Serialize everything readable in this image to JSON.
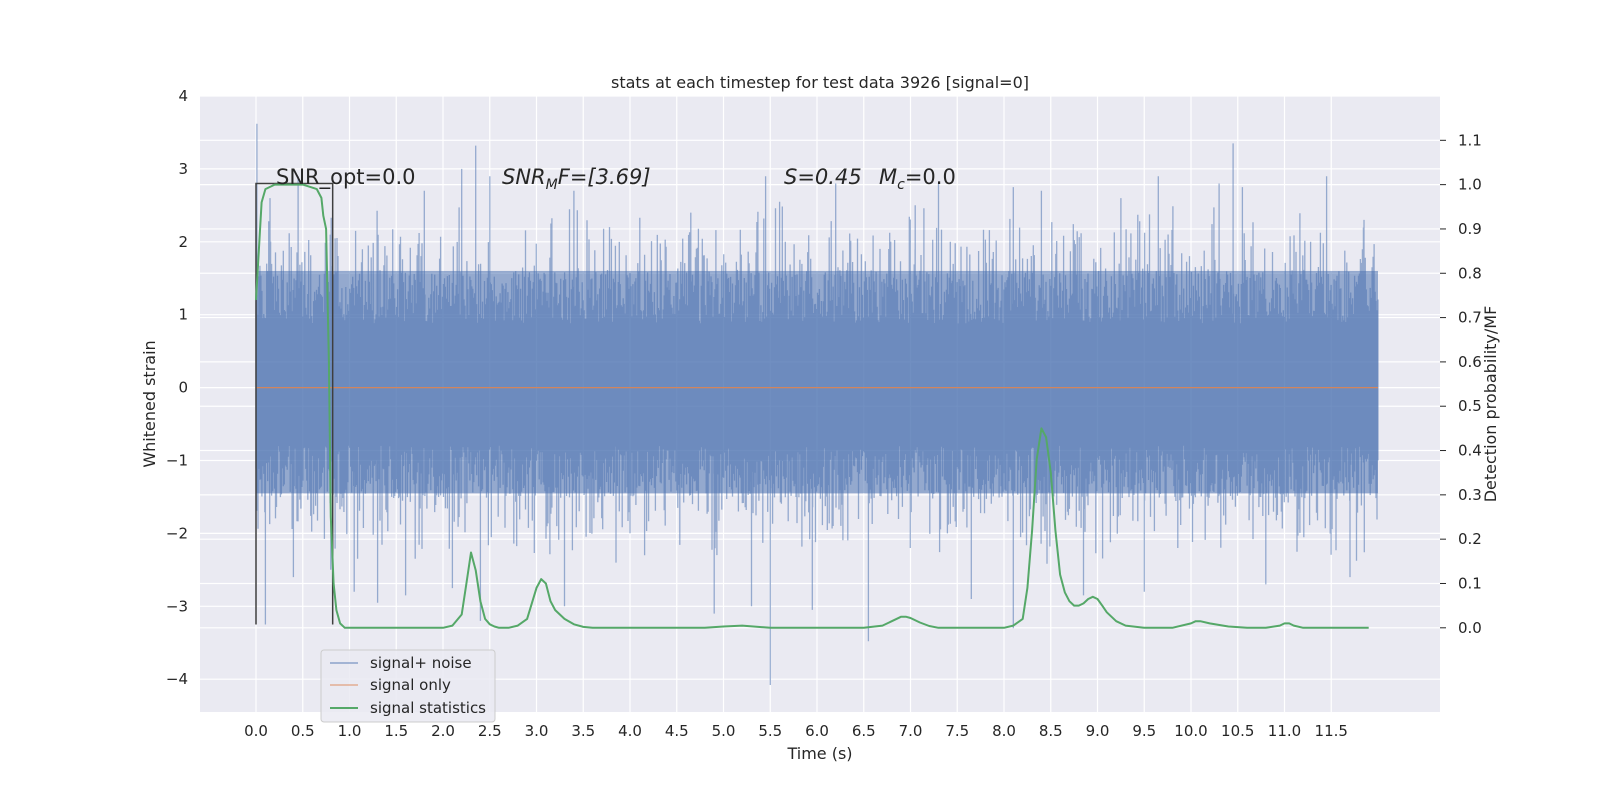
{
  "chart_data": {
    "type": "line",
    "title": "stats at each timestep for test data 3926 [signal=0]",
    "xlabel": "Time (s)",
    "ylabel": "Whitened strain",
    "y2label": "Detection probability/MF",
    "xlim": [
      -0.6,
      12.6
    ],
    "ylim": [
      -4.45,
      4.0
    ],
    "y2lim": [
      -0.19,
      1.2
    ],
    "x_ticks": [
      "0.0",
      "0.5",
      "1.0",
      "1.5",
      "2.0",
      "2.5",
      "3.0",
      "3.5",
      "4.0",
      "4.5",
      "5.0",
      "5.5",
      "6.0",
      "6.5",
      "7.0",
      "7.5",
      "8.0",
      "8.5",
      "9.0",
      "9.5",
      "10.0",
      "10.5",
      "11.0",
      "11.5"
    ],
    "y_ticks": [
      "4",
      "3",
      "2",
      "1",
      "0",
      "−1",
      "−2",
      "−3",
      "−4"
    ],
    "y2_ticks": [
      "1.1",
      "1.0",
      "0.9",
      "0.8",
      "0.7",
      "0.6",
      "0.5",
      "0.4",
      "0.3",
      "0.2",
      "0.1",
      "0.0"
    ],
    "grid": true,
    "legend_position": "lower-left",
    "annotations": {
      "snr_opt": "SNR_opt=0.0",
      "snr_mf": "SNR",
      "snr_mf_sub": "M",
      "snr_mf_tail": "F=[3.69]",
      "s_stat": "S=0.45",
      "mc": "M",
      "mc_sub": "c",
      "mc_tail": "=0.0"
    },
    "series": [
      {
        "name": "signal+ noise",
        "color": "#4c72b0",
        "x_range": [
          0.0,
          12.0
        ],
        "envelope_typical": [
          -1.45,
          1.6
        ],
        "spikes": [
          {
            "x": 0.01,
            "y": 3.62
          },
          {
            "x": 0.1,
            "y": -3.25
          },
          {
            "x": 0.15,
            "y": 2.6
          },
          {
            "x": 0.4,
            "y": -2.6
          },
          {
            "x": 0.45,
            "y": 2.9
          },
          {
            "x": 0.8,
            "y": -2.5
          },
          {
            "x": 1.05,
            "y": -2.8
          },
          {
            "x": 1.3,
            "y": -2.95
          },
          {
            "x": 1.6,
            "y": -2.85
          },
          {
            "x": 1.8,
            "y": 2.7
          },
          {
            "x": 2.1,
            "y": -2.75
          },
          {
            "x": 2.2,
            "y": 3.0
          },
          {
            "x": 2.35,
            "y": 3.32
          },
          {
            "x": 2.4,
            "y": -3.2
          },
          {
            "x": 2.5,
            "y": 2.9
          },
          {
            "x": 3.3,
            "y": -3.0
          },
          {
            "x": 3.4,
            "y": 2.7
          },
          {
            "x": 3.85,
            "y": -2.4
          },
          {
            "x": 4.65,
            "y": 2.4
          },
          {
            "x": 4.9,
            "y": -3.1
          },
          {
            "x": 5.3,
            "y": -3.0
          },
          {
            "x": 5.45,
            "y": 2.9
          },
          {
            "x": 5.5,
            "y": -4.08
          },
          {
            "x": 5.6,
            "y": 2.55
          },
          {
            "x": 5.95,
            "y": -3.05
          },
          {
            "x": 6.2,
            "y": 2.8
          },
          {
            "x": 6.55,
            "y": -3.48
          },
          {
            "x": 6.7,
            "y": -0.75
          },
          {
            "x": 7.05,
            "y": 2.5
          },
          {
            "x": 7.3,
            "y": 2.8
          },
          {
            "x": 7.65,
            "y": -2.9
          },
          {
            "x": 8.1,
            "y": 2.75
          },
          {
            "x": 8.1,
            "y": -3.3
          },
          {
            "x": 8.4,
            "y": 2.7
          },
          {
            "x": 8.85,
            "y": -2.85
          },
          {
            "x": 9.25,
            "y": 2.6
          },
          {
            "x": 9.5,
            "y": -2.8
          },
          {
            "x": 9.65,
            "y": 2.9
          },
          {
            "x": 10.3,
            "y": 2.8
          },
          {
            "x": 10.45,
            "y": 3.35
          },
          {
            "x": 10.55,
            "y": 2.75
          },
          {
            "x": 10.8,
            "y": -2.7
          },
          {
            "x": 11.45,
            "y": 2.9
          },
          {
            "x": 11.7,
            "y": -2.6
          },
          {
            "x": 11.85,
            "y": 2.3
          }
        ]
      },
      {
        "name": "signal only",
        "color": "#dd8452",
        "x": [
          0.0,
          12.0
        ],
        "y": [
          0.0,
          0.0
        ]
      },
      {
        "name": "signal statistics",
        "color": "#55a868",
        "axis": "right",
        "x": [
          0.0,
          0.03,
          0.06,
          0.1,
          0.2,
          0.35,
          0.5,
          0.65,
          0.7,
          0.72,
          0.75,
          0.78,
          0.8,
          0.83,
          0.86,
          0.9,
          0.95,
          1.0,
          1.2,
          1.5,
          1.8,
          2.0,
          2.1,
          2.2,
          2.25,
          2.3,
          2.35,
          2.4,
          2.45,
          2.5,
          2.55,
          2.6,
          2.7,
          2.8,
          2.9,
          3.0,
          3.05,
          3.1,
          3.15,
          3.2,
          3.3,
          3.4,
          3.5,
          3.6,
          4.0,
          4.5,
          4.8,
          5.0,
          5.2,
          5.5,
          6.0,
          6.5,
          6.7,
          6.8,
          6.9,
          6.95,
          7.0,
          7.1,
          7.2,
          7.3,
          7.5,
          8.0,
          8.1,
          8.2,
          8.25,
          8.3,
          8.35,
          8.4,
          8.45,
          8.5,
          8.55,
          8.6,
          8.65,
          8.7,
          8.75,
          8.8,
          8.85,
          8.9,
          8.95,
          9.0,
          9.05,
          9.1,
          9.2,
          9.3,
          9.5,
          9.8,
          10.0,
          10.05,
          10.1,
          10.2,
          10.4,
          10.6,
          10.8,
          10.95,
          11.0,
          11.05,
          11.1,
          11.2,
          11.5,
          11.9
        ],
        "y": [
          0.74,
          0.85,
          0.96,
          0.99,
          1.0,
          1.0,
          1.0,
          0.99,
          0.97,
          0.93,
          0.9,
          0.6,
          0.25,
          0.1,
          0.04,
          0.01,
          0.0,
          0.0,
          0.0,
          0.0,
          0.0,
          0.0,
          0.005,
          0.03,
          0.1,
          0.17,
          0.13,
          0.06,
          0.02,
          0.008,
          0.003,
          0.0,
          0.0,
          0.005,
          0.02,
          0.09,
          0.11,
          0.1,
          0.06,
          0.04,
          0.02,
          0.008,
          0.002,
          0.0,
          0.0,
          0.0,
          0.0,
          0.003,
          0.005,
          0.0,
          0.0,
          0.0,
          0.005,
          0.015,
          0.025,
          0.025,
          0.022,
          0.012,
          0.004,
          0.0,
          0.0,
          0.0,
          0.005,
          0.02,
          0.09,
          0.22,
          0.38,
          0.45,
          0.43,
          0.35,
          0.22,
          0.12,
          0.08,
          0.06,
          0.05,
          0.05,
          0.055,
          0.065,
          0.07,
          0.065,
          0.05,
          0.035,
          0.015,
          0.005,
          0.0,
          0.0,
          0.01,
          0.015,
          0.015,
          0.01,
          0.003,
          0.0,
          0.0,
          0.005,
          0.01,
          0.01,
          0.005,
          0.0,
          0.0,
          0.0
        ]
      },
      {
        "name": "",
        "color": "#3f3f3f",
        "x": [
          0.0,
          0.0,
          0.82,
          0.82
        ],
        "y": [
          -3.25,
          2.8,
          2.8,
          -3.25
        ]
      }
    ]
  }
}
